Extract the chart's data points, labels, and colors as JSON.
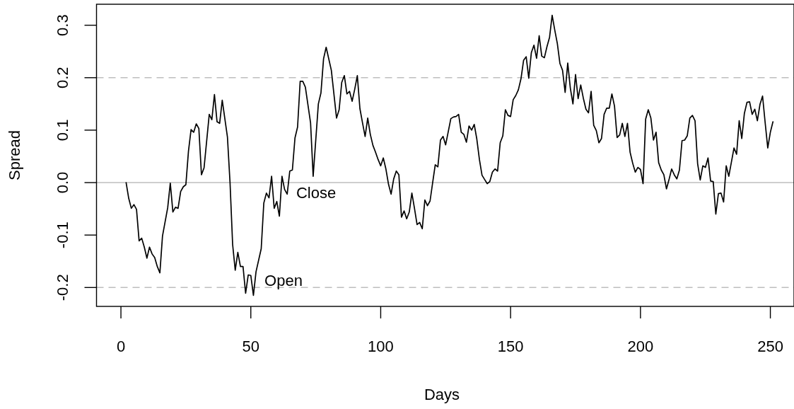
{
  "chart_data": {
    "type": "line",
    "xlabel": "Days",
    "ylabel": "Spread",
    "x": [
      2,
      3,
      4,
      5,
      6,
      7,
      8,
      9,
      10,
      11,
      12,
      13,
      14,
      15,
      16,
      18,
      19,
      20,
      21,
      22,
      23,
      24,
      25,
      26,
      27,
      28,
      29,
      30,
      31,
      32,
      34,
      35,
      36,
      37,
      38,
      39,
      41,
      42,
      43,
      44,
      45,
      46,
      47,
      48,
      49,
      50,
      51,
      52,
      54,
      55,
      56,
      57,
      58,
      59,
      60,
      61,
      62,
      63,
      64,
      65,
      66,
      67,
      68,
      69,
      70,
      71,
      73,
      74,
      76,
      77,
      78,
      79,
      81,
      83,
      84,
      85,
      86,
      87,
      88,
      89,
      90,
      91,
      92,
      93,
      94,
      95,
      96,
      97,
      98,
      99,
      100,
      101,
      102,
      103,
      104,
      105,
      106,
      107,
      108,
      109,
      110,
      111,
      112,
      113,
      114,
      115,
      116,
      117,
      118,
      119,
      120,
      121,
      122,
      123,
      124,
      125,
      126,
      127,
      128,
      129,
      130,
      131,
      132,
      133,
      134,
      135,
      136,
      137,
      138,
      139,
      140,
      141,
      142,
      143,
      144,
      145,
      146,
      147,
      148,
      149,
      150,
      151,
      152,
      153,
      154,
      155,
      156,
      157,
      158,
      159,
      160,
      161,
      162,
      163,
      164,
      165,
      166,
      167,
      168,
      169,
      170,
      171,
      172,
      173,
      174,
      175,
      176,
      177,
      178,
      179,
      180,
      181,
      182,
      183,
      184,
      185,
      186,
      187,
      188,
      189,
      190,
      191,
      192,
      193,
      194,
      195,
      196,
      197,
      198,
      199,
      200,
      201,
      202,
      203,
      204,
      205,
      206,
      207,
      208,
      209,
      210,
      211,
      212,
      213,
      214,
      215,
      216,
      217,
      218,
      219,
      220,
      221,
      222,
      223,
      224,
      225,
      226,
      227,
      228,
      229,
      230,
      231,
      232,
      233,
      234,
      235,
      236,
      237,
      238,
      239,
      240,
      241,
      242,
      243,
      244,
      245,
      246,
      247,
      248,
      249,
      250,
      251
    ],
    "series": [
      {
        "color": "#000000",
        "values": [
          0,
          -0.03,
          -0.049,
          -0.042,
          -0.051,
          -0.111,
          -0.106,
          -0.123,
          -0.144,
          -0.123,
          -0.136,
          -0.143,
          -0.16,
          -0.172,
          -0.102,
          -0.048,
          -0.001,
          -0.056,
          -0.047,
          -0.049,
          -0.017,
          -0.008,
          -0.004,
          0.06,
          0.101,
          0.096,
          0.112,
          0.103,
          0.015,
          0.028,
          0.13,
          0.12,
          0.168,
          0.116,
          0.113,
          0.157,
          0.087,
          0.0,
          -0.118,
          -0.167,
          -0.133,
          -0.16,
          -0.16,
          -0.211,
          -0.176,
          -0.177,
          -0.215,
          -0.17,
          -0.126,
          -0.039,
          -0.02,
          -0.029,
          0.012,
          -0.049,
          -0.036,
          -0.064,
          0.012,
          -0.013,
          -0.022,
          0.022,
          0.024,
          0.085,
          0.106,
          0.193,
          0.193,
          0.182,
          0.114,
          0.012,
          0.15,
          0.171,
          0.236,
          0.258,
          0.214,
          0.123,
          0.139,
          0.191,
          0.204,
          0.169,
          0.174,
          0.155,
          0.178,
          0.204,
          0.141,
          0.114,
          0.088,
          0.123,
          0.092,
          0.071,
          0.058,
          0.044,
          0.032,
          0.047,
          0.026,
          -0.003,
          -0.022,
          0.007,
          0.022,
          0.015,
          -0.066,
          -0.054,
          -0.069,
          -0.056,
          -0.02,
          -0.049,
          -0.08,
          -0.076,
          -0.088,
          -0.033,
          -0.044,
          -0.035,
          0.0,
          0.034,
          0.03,
          0.081,
          0.088,
          0.072,
          0.097,
          0.122,
          0.125,
          0.126,
          0.13,
          0.096,
          0.092,
          0.077,
          0.108,
          0.1,
          0.111,
          0.083,
          0.044,
          0.014,
          0.006,
          -0.002,
          0.002,
          0.02,
          0.026,
          0.022,
          0.076,
          0.089,
          0.139,
          0.128,
          0.126,
          0.158,
          0.166,
          0.177,
          0.198,
          0.233,
          0.24,
          0.199,
          0.248,
          0.262,
          0.237,
          0.28,
          0.241,
          0.238,
          0.259,
          0.277,
          0.319,
          0.291,
          0.265,
          0.227,
          0.214,
          0.172,
          0.228,
          0.18,
          0.15,
          0.206,
          0.16,
          0.186,
          0.161,
          0.14,
          0.133,
          0.174,
          0.109,
          0.099,
          0.076,
          0.084,
          0.13,
          0.142,
          0.142,
          0.169,
          0.146,
          0.086,
          0.091,
          0.113,
          0.088,
          0.113,
          0.058,
          0.037,
          0.02,
          0.029,
          0.025,
          -0.002,
          0.121,
          0.139,
          0.123,
          0.081,
          0.096,
          0.038,
          0.024,
          0.015,
          -0.012,
          0.006,
          0.026,
          0.015,
          0.007,
          0.024,
          0.08,
          0.081,
          0.089,
          0.123,
          0.128,
          0.118,
          0.036,
          0.005,
          0.032,
          0.029,
          0.047,
          0.003,
          0.002,
          -0.06,
          -0.021,
          -0.02,
          -0.037,
          0.032,
          0.012,
          0.039,
          0.066,
          0.054,
          0.118,
          0.084,
          0.132,
          0.153,
          0.154,
          0.13,
          0.14,
          0.118,
          0.149,
          0.165,
          0.114,
          0.066,
          0.096,
          0.116
        ]
      }
    ],
    "xlim": [
      -9.4,
      259.1
    ],
    "xticks": [
      0,
      50,
      100,
      150,
      200,
      250
    ],
    "ylim": [
      -0.236,
      0.34
    ],
    "yticks": [
      -0.2,
      -0.1,
      {
        "value": 0,
        "label": "0.0"
      },
      0.1,
      0.2,
      0.3
    ],
    "ref_lines": [
      {
        "axis": "y",
        "value": 0,
        "color": "#bebebe",
        "line_style": "solid"
      },
      {
        "axis": "y",
        "value": 0.2,
        "color": "#bebebe",
        "line_style": "dashed"
      },
      {
        "axis": "y",
        "value": -0.2,
        "color": "#bebebe",
        "line_style": "dashed"
      }
    ],
    "annotations": [
      "Close",
      "Open"
    ]
  }
}
